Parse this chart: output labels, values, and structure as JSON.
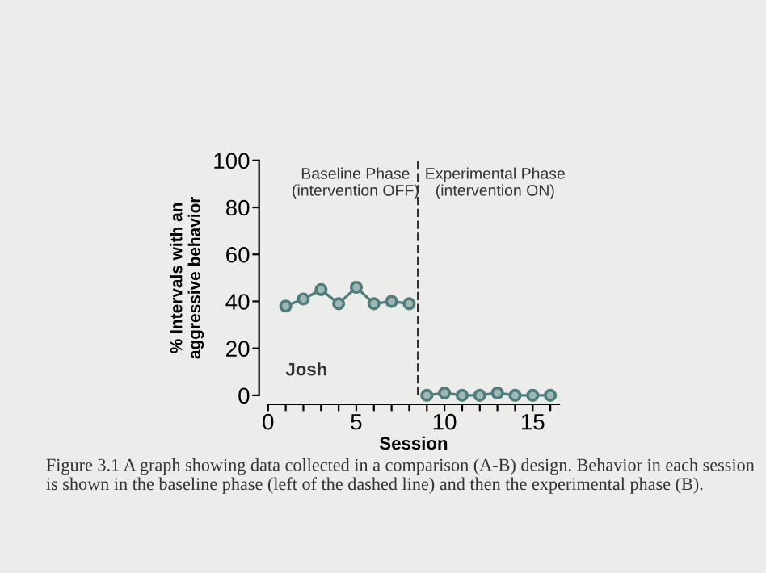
{
  "chart_data": {
    "type": "line",
    "xlabel": "Session",
    "ylabel": "% Intervals with an\naggressive behavior",
    "series": [
      {
        "color": "#4f7d7b",
        "x": [
          1,
          2,
          3,
          4,
          5,
          6,
          7,
          8
        ],
        "values": [
          38,
          41,
          45,
          39,
          46,
          39,
          40,
          39
        ]
      },
      {
        "color": "#4f7d7b",
        "x": [
          9,
          10,
          11,
          12,
          13,
          14,
          15,
          16
        ],
        "values": [
          0,
          1,
          0,
          0,
          1,
          0,
          0,
          0
        ]
      }
    ],
    "xlim": [
      0,
      16.5
    ],
    "ylim": [
      0,
      100
    ],
    "xticks": [
      0,
      {
        "value": 1,
        "label": null
      },
      {
        "value": 2,
        "label": null
      },
      {
        "value": 3,
        "label": null
      },
      {
        "value": 4,
        "label": null
      },
      5,
      {
        "value": 6,
        "label": null
      },
      {
        "value": 7,
        "label": null
      },
      {
        "value": 8,
        "label": null
      },
      {
        "value": 9,
        "label": null
      },
      10,
      {
        "value": 11,
        "label": null
      },
      {
        "value": 12,
        "label": null
      },
      {
        "value": 13,
        "label": null
      },
      {
        "value": 14,
        "label": null
      },
      15,
      {
        "value": 16,
        "label": null
      }
    ],
    "yticks": [
      0,
      20,
      40,
      60,
      80,
      100
    ],
    "ref_lines": [
      {
        "axis": "x",
        "value": 8.5,
        "line_style": "dashed",
        "color": "#333333"
      }
    ],
    "annotations": [
      "Baseline Phase\n(intervention OFF)",
      "Experimental Phase\n(intervention ON)",
      "Josh",
      "Figure 3.1 A graph showing data collected in a comparison (A-B) design. Behavior in each session is shown in the baseline phase (left of the dashed line) and then the experimental phase (B)."
    ],
    "marker": "circle",
    "line_style": "solid",
    "grid": false,
    "legend": false
  }
}
